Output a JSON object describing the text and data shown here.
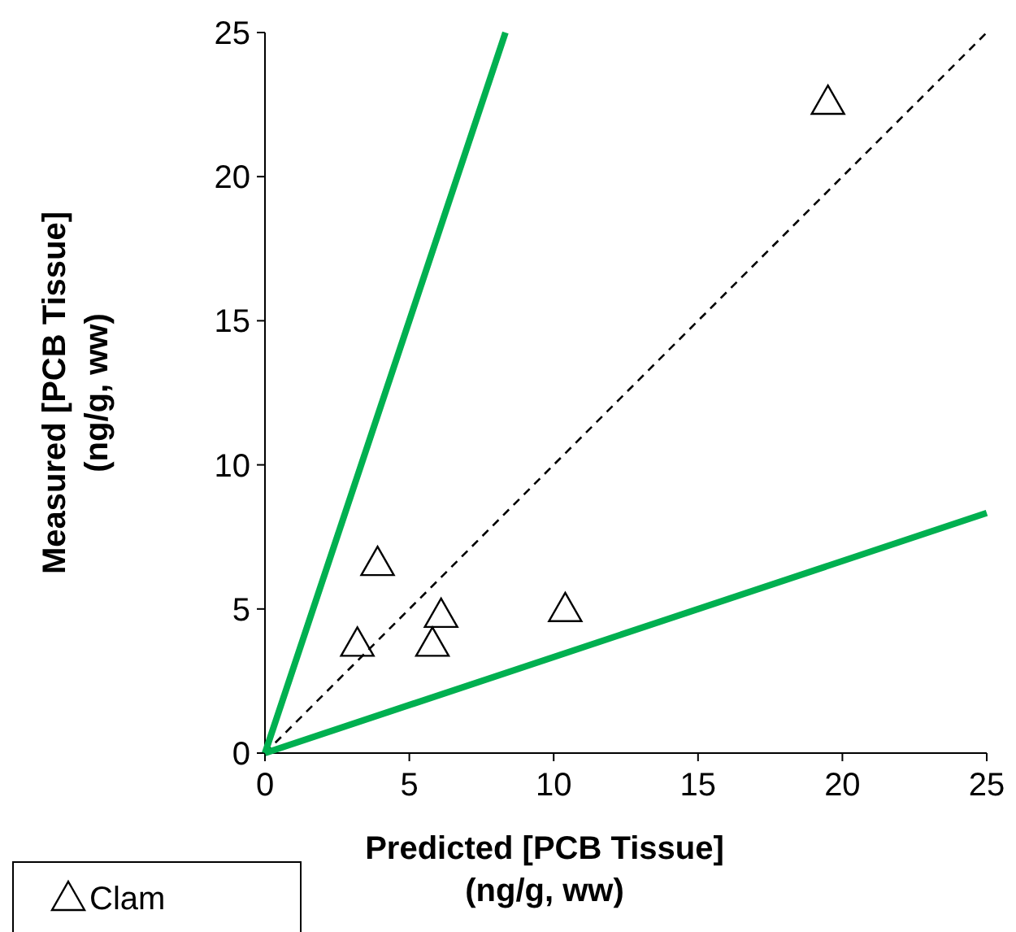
{
  "chart_data": {
    "type": "scatter",
    "xlabel": "Predicted [PCB Tissue]\n(ng/g, ww)",
    "ylabel": "Measured [PCB Tissue]\n(ng/g, ww)",
    "xlim": [
      0,
      25
    ],
    "ylim": [
      0,
      25
    ],
    "xticks": [
      0,
      5,
      10,
      15,
      20,
      25
    ],
    "yticks": [
      0,
      5,
      10,
      15,
      20,
      25
    ],
    "grid": false,
    "legend": "bottom left",
    "series": [
      {
        "name": "Clam",
        "type": "scatter",
        "color": "#000000",
        "marker": "triangle",
        "x": [
          3.2,
          3.9,
          5.8,
          6.1,
          10.4,
          19.5
        ],
        "values": [
          3.8,
          6.6,
          3.8,
          4.8,
          5.0,
          22.6
        ]
      },
      {
        "type": "line",
        "color": "#000000",
        "line_style": "dashed",
        "marker": "none",
        "x": [
          0,
          25
        ],
        "values": [
          0,
          25
        ]
      },
      {
        "type": "line",
        "color": "#00b050",
        "line_style": "solid",
        "marker": "none",
        "x": [
          0,
          8.33
        ],
        "values": [
          0,
          25
        ]
      },
      {
        "type": "line",
        "color": "#00b050",
        "line_style": "solid",
        "marker": "none",
        "x": [
          0,
          25
        ],
        "values": [
          0,
          8.33
        ]
      }
    ]
  }
}
